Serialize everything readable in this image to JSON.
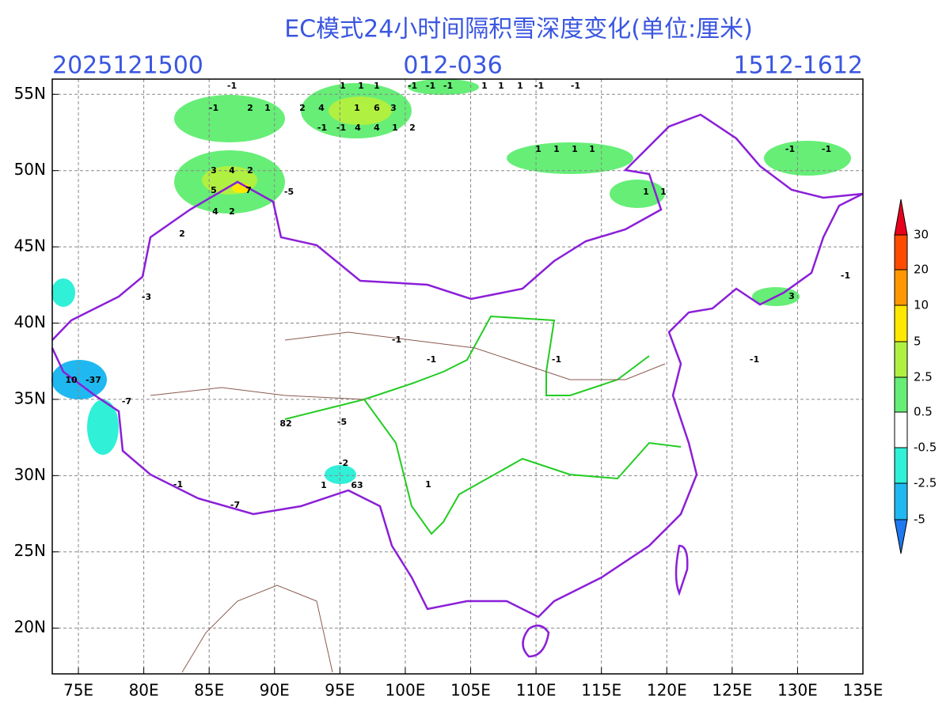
{
  "header": {
    "title": "EC模式24小时间隔积雪深度变化(单位:厘米)",
    "init_time": "2025121500",
    "forecast_hours": "012-036",
    "valid_period": "1512-1612"
  },
  "map": {
    "lon_ticks": [
      {
        "value": 75,
        "label": "75E"
      },
      {
        "value": 80,
        "label": "80E"
      },
      {
        "value": 85,
        "label": "85E"
      },
      {
        "value": 90,
        "label": "90E"
      },
      {
        "value": 95,
        "label": "95E"
      },
      {
        "value": 100,
        "label": "100E"
      },
      {
        "value": 105,
        "label": "105E"
      },
      {
        "value": 110,
        "label": "110E"
      },
      {
        "value": 115,
        "label": "115E"
      },
      {
        "value": 120,
        "label": "120E"
      },
      {
        "value": 125,
        "label": "125E"
      },
      {
        "value": 130,
        "label": "130E"
      },
      {
        "value": 135,
        "label": "135E"
      }
    ],
    "lat_ticks": [
      {
        "value": 20,
        "label": "20N"
      },
      {
        "value": 25,
        "label": "25N"
      },
      {
        "value": 30,
        "label": "30N"
      },
      {
        "value": 35,
        "label": "35N"
      },
      {
        "value": 40,
        "label": "40N"
      },
      {
        "value": 45,
        "label": "45N"
      },
      {
        "value": 50,
        "label": "50N"
      },
      {
        "value": 55,
        "label": "55N"
      }
    ],
    "lonlim": [
      73,
      135
    ],
    "latlim": [
      17,
      56
    ],
    "grid": true,
    "labels": [
      "-1",
      "-1",
      "2",
      "1",
      "2",
      "4",
      "1",
      "6",
      "3",
      "1",
      "1",
      "1",
      "-1",
      "-1",
      "-1",
      "1",
      "1",
      "1",
      "-1",
      "-1",
      "-1",
      "-1",
      "4",
      "4",
      "1",
      "2",
      "3",
      "4",
      "2",
      "5",
      "7",
      "-5",
      "4",
      "2",
      "2",
      "1",
      "1",
      "1",
      "1",
      "1",
      "1",
      "-1",
      "-1",
      "3",
      "-1",
      "-3",
      "10",
      "-37",
      "-7",
      "82",
      "-5",
      "-2",
      "63",
      "1",
      "1",
      "-7",
      "-1",
      "-1",
      "-1",
      "-1",
      "-1"
    ]
  },
  "colorbar": {
    "labels": [
      "30",
      "20",
      "10",
      "5",
      "2.5",
      "0.5",
      "-0.5",
      "-2.5",
      "-5"
    ],
    "colors": [
      "#e8001c",
      "#ff4a00",
      "#ff9800",
      "#ffe800",
      "#b0f040",
      "#66ee77",
      "#ffffff",
      "#30f0d8",
      "#20b8f0",
      "#1e78f0"
    ]
  }
}
